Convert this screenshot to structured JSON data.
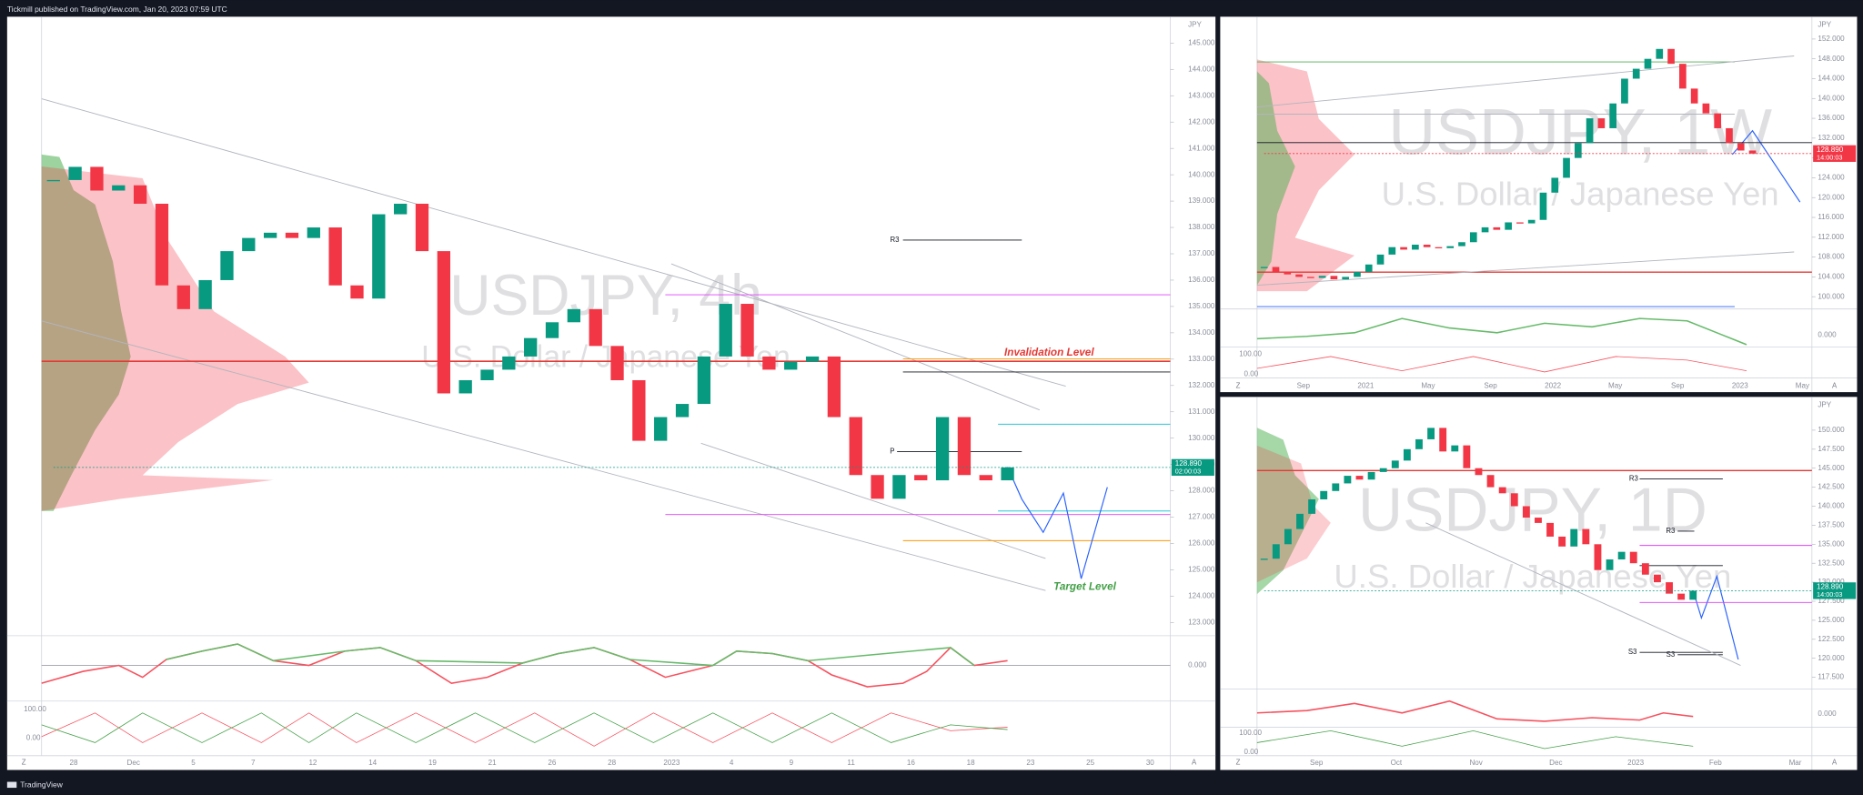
{
  "header": {
    "text": "Tickmill published on TradingView.com, Jan 20, 2023 07:59 UTC"
  },
  "footer": {
    "brand": "TradingView"
  },
  "scale_modes": {
    "left": "Z",
    "right": "A"
  },
  "panels": [
    {
      "title": "USDJPY, 4h",
      "subtitle": "U.S. Dollar / Japanese Yen",
      "currency": "JPY",
      "ylim": [
        122.5,
        146
      ],
      "price_ticks": [
        {
          "value": 123,
          "label": "123.000"
        },
        {
          "value": 124,
          "label": "124.000"
        },
        {
          "value": 125,
          "label": "125.000"
        },
        {
          "value": 126,
          "label": "126.000"
        },
        {
          "value": 127,
          "label": "127.000"
        },
        {
          "value": 128,
          "label": "128.000"
        },
        {
          "value": 129,
          "label": "129.000"
        },
        {
          "value": 130,
          "label": "130.000"
        },
        {
          "value": 131,
          "label": "131.000"
        },
        {
          "value": 132,
          "label": "132.000"
        },
        {
          "value": 133,
          "label": "133.000"
        },
        {
          "value": 134,
          "label": "134.000"
        },
        {
          "value": 135,
          "label": "135.000"
        },
        {
          "value": 136,
          "label": "136.000"
        },
        {
          "value": 137,
          "label": "137.000"
        },
        {
          "value": 138,
          "label": "138.000"
        },
        {
          "value": 139,
          "label": "139.000"
        },
        {
          "value": 140,
          "label": "140.000"
        },
        {
          "value": 141,
          "label": "141.000"
        },
        {
          "value": 142,
          "label": "142.000"
        },
        {
          "value": 143,
          "label": "143.000"
        },
        {
          "value": 144,
          "label": "144.000"
        },
        {
          "value": 145,
          "label": "145.000"
        }
      ],
      "last_price": {
        "value": 128.89,
        "label": "128.890",
        "countdown": "02:00:03",
        "color": "#089981"
      },
      "closes": [
        139.8,
        140.3,
        139.4,
        139.6,
        138.9,
        135.8,
        134.9,
        136.0,
        137.1,
        137.6,
        137.8,
        137.6,
        138.0,
        135.8,
        135.3,
        138.5,
        138.9,
        137.1,
        131.7,
        132.2,
        132.6,
        133.1,
        133.8,
        134.4,
        134.9,
        133.5,
        132.2,
        129.9,
        130.8,
        131.3,
        133.1,
        135.1,
        133.1,
        132.6,
        132.9,
        133.1,
        130.8,
        128.6,
        127.7,
        128.6,
        128.4,
        130.8,
        128.6,
        128.4,
        128.89
      ],
      "time_labels": [
        "28",
        "Dec",
        "5",
        "7",
        "12",
        "14",
        "19",
        "21",
        "26",
        "28",
        "2023",
        "4",
        "9",
        "11",
        "16",
        "18",
        "23",
        "25",
        "30"
      ],
      "levels": {
        "invalidation": "Invalidation Level",
        "target": "Target Level",
        "r3": "R3",
        "pivot": "P"
      },
      "indicator_labels": [
        "0.000",
        "100.00",
        "0.00"
      ]
    },
    {
      "title": "USDJPY, 1W",
      "subtitle": "U.S. Dollar / Japanese Yen",
      "currency": "JPY",
      "ylim": [
        98,
        156.5
      ],
      "price_ticks": [
        {
          "value": 100,
          "label": "100.000"
        },
        {
          "value": 104,
          "label": "104.000"
        },
        {
          "value": 108,
          "label": "108.000"
        },
        {
          "value": 112,
          "label": "112.000"
        },
        {
          "value": 116,
          "label": "116.000"
        },
        {
          "value": 120,
          "label": "120.000"
        },
        {
          "value": 124,
          "label": "124.000"
        },
        {
          "value": 128,
          "label": "128.000"
        },
        {
          "value": 132,
          "label": "132.000"
        },
        {
          "value": 136,
          "label": "136.000"
        },
        {
          "value": 140,
          "label": "140.000"
        },
        {
          "value": 144,
          "label": "144.000"
        },
        {
          "value": 148,
          "label": "148.000"
        },
        {
          "value": 152,
          "label": "152.000"
        }
      ],
      "last_price": {
        "value": 128.89,
        "label": "128.890",
        "countdown": "14:00:03",
        "color": "#f23645"
      },
      "closes": [
        106,
        105,
        104.5,
        104,
        103.8,
        104.2,
        103.5,
        104,
        105,
        106.5,
        108.5,
        110,
        109.5,
        110.5,
        110,
        109.8,
        110.2,
        111,
        113,
        114,
        113.5,
        115,
        114.8,
        115.5,
        121,
        124,
        128,
        131,
        136,
        134,
        139,
        144,
        146,
        148,
        150,
        147,
        142,
        139,
        137,
        134,
        131,
        129.5,
        128.89
      ],
      "time_labels": [
        "Sep",
        "2021",
        "May",
        "Sep",
        "2022",
        "May",
        "Sep",
        "2023",
        "May"
      ],
      "indicator_labels": [
        "0.000",
        "100.00",
        "0.00"
      ]
    },
    {
      "title": "USDJPY, 1D",
      "subtitle": "U.S. Dollar / Japanese Yen",
      "currency": "JPY",
      "ylim": [
        116.25,
        153.75
      ],
      "price_ticks": [
        {
          "value": 117.5,
          "label": "117.500"
        },
        {
          "value": 120,
          "label": "120.000"
        },
        {
          "value": 122.5,
          "label": "122.500"
        },
        {
          "value": 125,
          "label": "125.000"
        },
        {
          "value": 127.5,
          "label": "127.500"
        },
        {
          "value": 130,
          "label": "130.000"
        },
        {
          "value": 132.5,
          "label": "132.500"
        },
        {
          "value": 135,
          "label": "135.000"
        },
        {
          "value": 137.5,
          "label": "137.500"
        },
        {
          "value": 140,
          "label": "140.000"
        },
        {
          "value": 142.5,
          "label": "142.500"
        },
        {
          "value": 145,
          "label": "145.000"
        },
        {
          "value": 147.5,
          "label": "147.500"
        },
        {
          "value": 150,
          "label": "150.000"
        }
      ],
      "last_price": {
        "value": 128.89,
        "label": "128.890",
        "countdown": "14:00:03",
        "color": "#089981"
      },
      "closes": [
        133.1,
        135,
        137,
        139,
        140.9,
        142,
        143,
        144,
        143.5,
        144.5,
        145,
        146,
        147.5,
        148.8,
        150.3,
        147.2,
        148,
        145,
        144.1,
        142.5,
        141.7,
        140,
        138.5,
        137.8,
        136,
        134.7,
        137,
        135,
        131.6,
        133,
        134,
        132.5,
        131,
        130,
        128.5,
        127.7,
        128.89
      ],
      "time_labels": [
        "Sep",
        "Oct",
        "Nov",
        "Dec",
        "2023",
        "Feb",
        "Mar"
      ],
      "levels": {
        "r3": "R3",
        "r3b": "R3",
        "s3": "S3",
        "s3b": "S3"
      },
      "indicator_labels": [
        "0.000",
        "100.00",
        "0.00"
      ]
    }
  ]
}
